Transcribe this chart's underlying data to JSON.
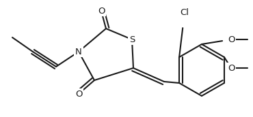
{
  "bg_color": "#ffffff",
  "line_color": "#1a1a1a",
  "line_width": 1.5,
  "font_size": 9.5,
  "figsize": [
    3.7,
    1.72
  ],
  "dpi": 100,
  "xlim": [
    0,
    370
  ],
  "ylim": [
    0,
    172
  ]
}
